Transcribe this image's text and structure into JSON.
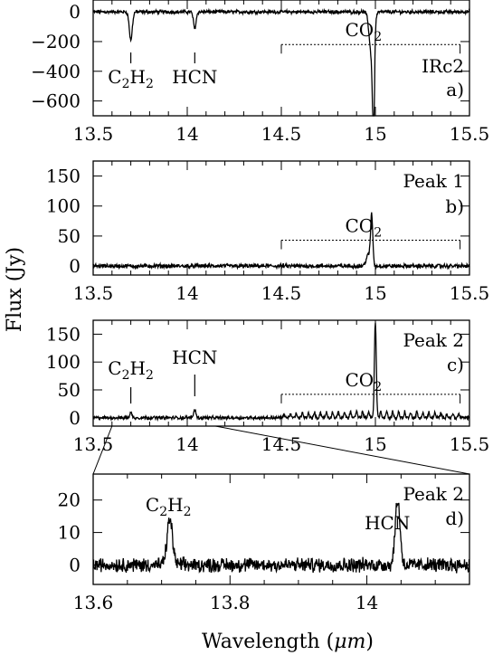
{
  "chart_data": [
    {
      "panel": "a",
      "type": "line",
      "source_label": "IRc2",
      "panel_letter": "a)",
      "xlim": [
        13.5,
        15.5
      ],
      "ylim": [
        -700,
        80
      ],
      "xticks": [
        13.5,
        14,
        14.5,
        15,
        15.5
      ],
      "xtick_labels": [
        "13.5",
        "14",
        "14.5",
        "15",
        "15.5"
      ],
      "yticks": [
        0,
        -200,
        -400,
        -600
      ],
      "ytick_labels": [
        "0",
        "−200",
        "−400",
        "−600"
      ],
      "baseline": 0,
      "noise": 12,
      "features": [
        {
          "x": 13.7,
          "amp": -190,
          "width": 0.008
        },
        {
          "x": 14.04,
          "amp": -110,
          "width": 0.007
        },
        {
          "x": 14.98,
          "amp": -300,
          "width": 0.012
        },
        {
          "x": 14.99,
          "amp": -690,
          "width": 0.005
        }
      ],
      "annotations": [
        {
          "label_main": "C",
          "sub1": "2",
          "label_mid": "H",
          "sub2": "2",
          "x": 13.7
        },
        {
          "label_main": "HCN",
          "x": 14.04
        }
      ],
      "band": {
        "label_main": "CO",
        "sub": "2",
        "x0": 14.5,
        "x1": 15.45,
        "y": -220
      }
    },
    {
      "panel": "b",
      "type": "line",
      "source_label": "Peak 1",
      "panel_letter": "b)",
      "xlim": [
        13.5,
        15.5
      ],
      "ylim": [
        -15,
        175
      ],
      "xticks": [
        13.5,
        14,
        14.5,
        15,
        15.5
      ],
      "xtick_labels": [
        "13.5",
        "14",
        "14.5",
        "15",
        "15.5"
      ],
      "yticks": [
        0,
        50,
        100,
        150
      ],
      "ytick_labels": [
        "0",
        "50",
        "100",
        "150"
      ],
      "baseline": 0,
      "noise": 3.5,
      "features": [
        {
          "x": 14.98,
          "amp": 85,
          "width": 0.006
        },
        {
          "x": 14.96,
          "amp": 18,
          "width": 0.01
        }
      ],
      "band": {
        "label_main": "CO",
        "sub": "2",
        "x0": 14.5,
        "x1": 15.45,
        "y": 43
      }
    },
    {
      "panel": "c",
      "type": "line",
      "source_label": "Peak 2",
      "panel_letter": "c)",
      "xlim": [
        13.5,
        15.5
      ],
      "ylim": [
        -15,
        175
      ],
      "xticks": [
        13.5,
        14,
        14.5,
        15,
        15.5
      ],
      "xtick_labels": [
        "13.5",
        "14",
        "14.5",
        "15",
        "15.5"
      ],
      "yticks": [
        0,
        50,
        100,
        150
      ],
      "ytick_labels": [
        "0",
        "50",
        "100",
        "150"
      ],
      "baseline": 0,
      "noise": 3,
      "features": [
        {
          "x": 13.7,
          "amp": 9,
          "width": 0.006
        },
        {
          "x": 14.04,
          "amp": 15,
          "width": 0.006
        },
        {
          "x": 15.0,
          "amp": 165,
          "width": 0.005
        }
      ],
      "band_comb": {
        "x0": 14.5,
        "x1": 15.45,
        "amp": 12,
        "spacing": 0.032
      },
      "annotations": [
        {
          "label_main": "C",
          "sub1": "2",
          "label_mid": "H",
          "sub2": "2",
          "x": 13.7
        },
        {
          "label_main": "HCN",
          "x": 14.04
        }
      ],
      "band": {
        "label_main": "CO",
        "sub": "2",
        "x0": 14.5,
        "x1": 15.45,
        "y": 42
      }
    },
    {
      "panel": "d",
      "type": "line",
      "source_label": "Peak 2",
      "panel_letter": "d)",
      "xlim": [
        13.6,
        14.15
      ],
      "ylim": [
        -6,
        28
      ],
      "xticks": [
        13.6,
        13.8,
        14
      ],
      "xtick_labels": [
        "13.6",
        "13.8",
        "14"
      ],
      "yticks": [
        0,
        10,
        20
      ],
      "ytick_labels": [
        "0",
        "10",
        "20"
      ],
      "baseline": 0,
      "noise": 2.2,
      "features": [
        {
          "x": 13.712,
          "amp": 14,
          "width": 0.004
        },
        {
          "x": 14.045,
          "amp": 20,
          "width": 0.0035
        }
      ],
      "annotations": [
        {
          "label_main": "C",
          "sub1": "2",
          "label_mid": "H",
          "sub2": "2",
          "x": 13.71
        },
        {
          "label_main": "HCN",
          "x": 14.03
        }
      ]
    }
  ],
  "ylabel": "Flux (Jy)",
  "xlabel_prefix": "Wavelength (",
  "xlabel_unit": "μm",
  "xlabel_suffix": ")"
}
